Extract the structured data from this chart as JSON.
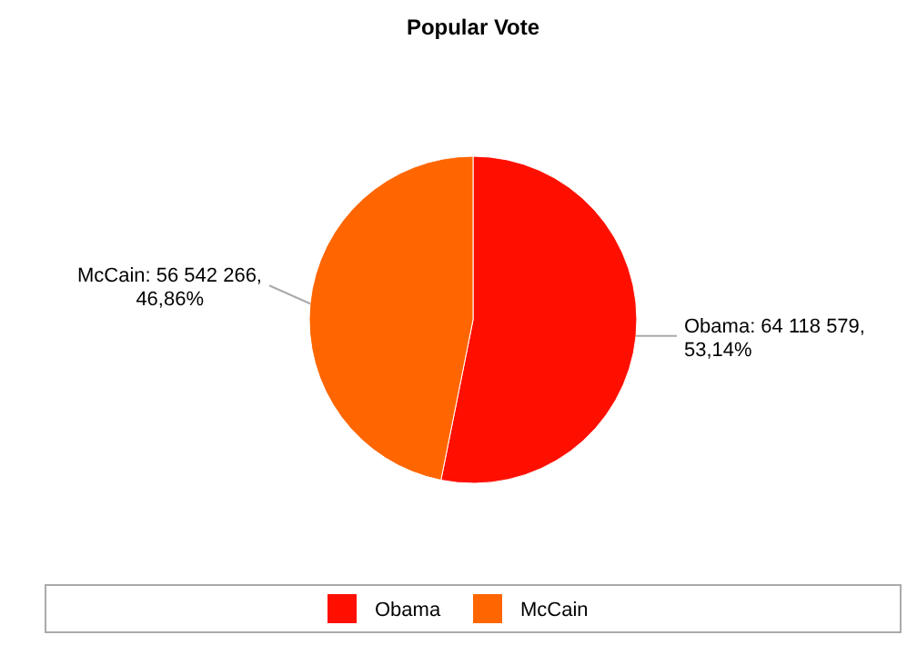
{
  "chart_data": {
    "type": "pie",
    "title": "Popular Vote",
    "categories": [
      "Obama",
      "McCain"
    ],
    "values": [
      64118579,
      56542266
    ],
    "colors": [
      "#ff0f00",
      "#ff6600"
    ],
    "value_labels": [
      "Obama: 64 118 579, 53,14%",
      "McCain: 56 542 266, 46,86%"
    ],
    "legend": "bottom"
  }
}
